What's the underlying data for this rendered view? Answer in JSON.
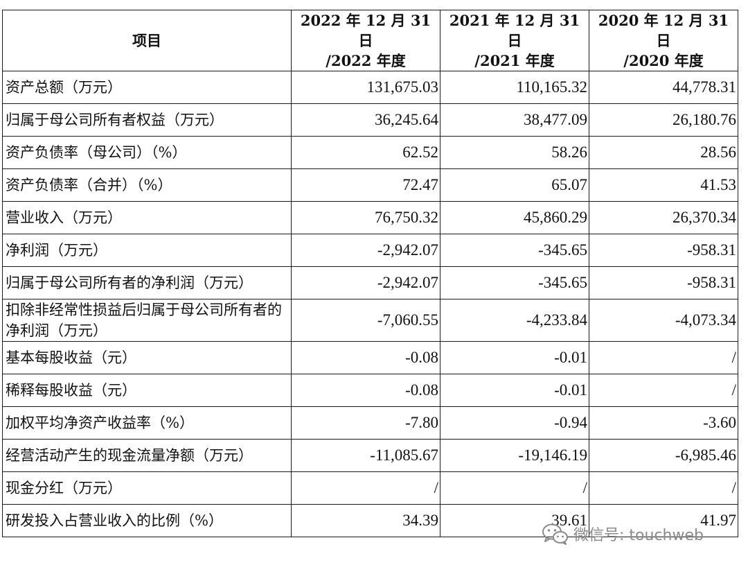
{
  "table": {
    "headers": [
      {
        "line1": "项目",
        "line2": ""
      },
      {
        "line1": "2022 年 12 月 31 日",
        "line2": "/2022 年度"
      },
      {
        "line1": "2021 年 12 月 31 日",
        "line2": "/2021 年度"
      },
      {
        "line1": "2020 年 12 月 31 日",
        "line2": "/2020 年度"
      }
    ],
    "rows": [
      {
        "label": "资产总额（万元）",
        "y2022": "131,675.03",
        "y2021": "110,165.32",
        "y2020": "44,778.31"
      },
      {
        "label": "归属于母公司所有者权益（万元）",
        "y2022": "36,245.64",
        "y2021": "38,477.09",
        "y2020": "26,180.76"
      },
      {
        "label": "资产负债率（母公司）（%）",
        "y2022": "62.52",
        "y2021": "58.26",
        "y2020": "28.56"
      },
      {
        "label": "资产负债率（合并）（%）",
        "y2022": "72.47",
        "y2021": "65.07",
        "y2020": "41.53"
      },
      {
        "label": "营业收入（万元）",
        "y2022": "76,750.32",
        "y2021": "45,860.29",
        "y2020": "26,370.34"
      },
      {
        "label": "净利润（万元）",
        "y2022": "-2,942.07",
        "y2021": "-345.65",
        "y2020": "-958.31"
      },
      {
        "label": "归属于母公司所有者的净利润（万元）",
        "y2022": "-2,942.07",
        "y2021": "-345.65",
        "y2020": "-958.31"
      },
      {
        "label": "扣除非经常性损益后归属于母公司所有者的净利润（万元）",
        "y2022": "-7,060.55",
        "y2021": "-4,233.84",
        "y2020": "-4,073.34"
      },
      {
        "label": "基本每股收益（元）",
        "y2022": "-0.08",
        "y2021": "-0.01",
        "y2020": "/"
      },
      {
        "label": "稀释每股收益（元）",
        "y2022": "-0.08",
        "y2021": "-0.01",
        "y2020": "/"
      },
      {
        "label": "加权平均净资产收益率（%）",
        "y2022": "-7.80",
        "y2021": "-0.94",
        "y2020": "-3.60"
      },
      {
        "label": "经营活动产生的现金流量净额（万元）",
        "y2022": "-11,085.67",
        "y2021": "-19,146.19",
        "y2020": "-6,985.46"
      },
      {
        "label": "现金分红（万元）",
        "y2022": "/",
        "y2021": "/",
        "y2020": "/"
      },
      {
        "label": "研发投入占营业收入的比例（%）",
        "y2022": "34.39",
        "y2021": "39.61",
        "y2020": "41.97"
      }
    ]
  },
  "watermark": {
    "text": "微信号: touchweb",
    "icon": "wechat-icon"
  }
}
